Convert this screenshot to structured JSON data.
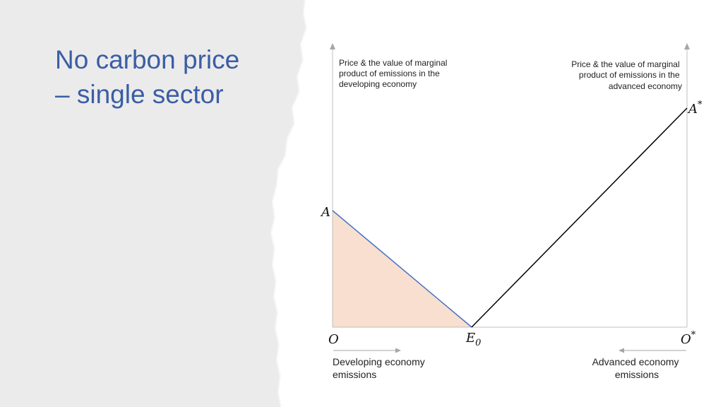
{
  "title": {
    "line1": "No carbon price",
    "line2": "– single sector"
  },
  "diagram": {
    "left_axis_caption": [
      "Price & the value of marginal",
      "product of emissions in the",
      "developing economy"
    ],
    "right_axis_caption": [
      "Price & the value of marginal",
      "product of emissions in the",
      "advanced economy"
    ],
    "points": {
      "A": "A",
      "A_star": "A",
      "star": "*",
      "O": "O",
      "O_star": "O",
      "E0": "E",
      "E0_sub": "0"
    },
    "bottom_left_caption": [
      "Developing economy",
      "emissions"
    ],
    "bottom_right_caption": [
      "Advanced economy",
      "emissions"
    ]
  },
  "colors": {
    "title": "#3b5da5",
    "fill": "#f8dfcf",
    "developing_curve": "#4472c4",
    "advanced_curve": "#000000",
    "axis": "#bfbfbf",
    "sidebar": "#ebebeb"
  }
}
